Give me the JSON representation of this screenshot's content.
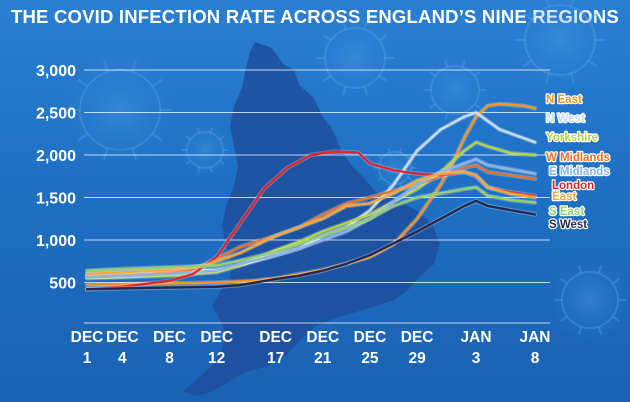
{
  "chart_data": {
    "type": "line",
    "title": "THE COVID INFECTION RATE ACROSS ENGLAND’S NINE REGIONS",
    "xlabel": "",
    "ylabel": "",
    "ylim": [
      0,
      3000
    ],
    "yticks": [
      500,
      1000,
      1500,
      2000,
      2500,
      3000
    ],
    "ytick_labels": [
      "500",
      "1,000",
      "1,500",
      "2,000",
      "2,500",
      "3,000"
    ],
    "grid": true,
    "legend_position": "right, at line ends",
    "x": [
      1,
      4,
      8,
      12,
      17,
      21,
      25,
      29,
      34,
      39
    ],
    "xtick_labels": [
      [
        "DEC",
        "1"
      ],
      [
        "DEC",
        "4"
      ],
      [
        "DEC",
        "8"
      ],
      [
        "DEC",
        "12"
      ],
      [
        "DEC",
        "17"
      ],
      [
        "DEC",
        "21"
      ],
      [
        "DEC",
        "25"
      ],
      [
        "DEC",
        "29"
      ],
      [
        "JAN",
        "3"
      ],
      [
        "JAN",
        "8"
      ]
    ],
    "series": [
      {
        "name": "N East",
        "color": "#f7941d",
        "points": [
          [
            1,
            470
          ],
          [
            4,
            480
          ],
          [
            8,
            490
          ],
          [
            12,
            500
          ],
          [
            15,
            520
          ],
          [
            17,
            550
          ],
          [
            19,
            600
          ],
          [
            21,
            650
          ],
          [
            23,
            720
          ],
          [
            25,
            800
          ],
          [
            27,
            950
          ],
          [
            29,
            1250
          ],
          [
            31,
            1650
          ],
          [
            32,
            1900
          ],
          [
            33,
            2200
          ],
          [
            34,
            2450
          ],
          [
            35,
            2580
          ],
          [
            36,
            2600
          ],
          [
            38,
            2580
          ],
          [
            39,
            2550
          ]
        ]
      },
      {
        "name": "N West",
        "color": "#c8dcf0",
        "points": [
          [
            1,
            600
          ],
          [
            4,
            620
          ],
          [
            8,
            640
          ],
          [
            12,
            650
          ],
          [
            14,
            700
          ],
          [
            17,
            820
          ],
          [
            19,
            900
          ],
          [
            21,
            1050
          ],
          [
            23,
            1150
          ],
          [
            25,
            1350
          ],
          [
            27,
            1650
          ],
          [
            29,
            2050
          ],
          [
            31,
            2300
          ],
          [
            33,
            2450
          ],
          [
            34,
            2500
          ],
          [
            35,
            2400
          ],
          [
            36,
            2300
          ],
          [
            38,
            2200
          ],
          [
            39,
            2150
          ]
        ]
      },
      {
        "name": "Yorkshire",
        "color": "#b5d33d",
        "points": [
          [
            1,
            550
          ],
          [
            4,
            560
          ],
          [
            8,
            580
          ],
          [
            12,
            620
          ],
          [
            14,
            700
          ],
          [
            17,
            880
          ],
          [
            19,
            980
          ],
          [
            21,
            1100
          ],
          [
            23,
            1200
          ],
          [
            25,
            1300
          ],
          [
            27,
            1450
          ],
          [
            29,
            1600
          ],
          [
            31,
            1800
          ],
          [
            33,
            2050
          ],
          [
            34,
            2150
          ],
          [
            35,
            2100
          ],
          [
            37,
            2020
          ],
          [
            39,
            2000
          ]
        ]
      },
      {
        "name": "W Midlands",
        "color": "#e8722a",
        "points": [
          [
            1,
            570
          ],
          [
            4,
            580
          ],
          [
            8,
            620
          ],
          [
            10,
            650
          ],
          [
            12,
            780
          ],
          [
            14,
            920
          ],
          [
            17,
            1050
          ],
          [
            19,
            1150
          ],
          [
            21,
            1300
          ],
          [
            23,
            1430
          ],
          [
            25,
            1500
          ],
          [
            27,
            1580
          ],
          [
            29,
            1650
          ],
          [
            31,
            1750
          ],
          [
            33,
            1850
          ],
          [
            34,
            1880
          ],
          [
            35,
            1800
          ],
          [
            37,
            1760
          ],
          [
            39,
            1720
          ]
        ]
      },
      {
        "name": "E Midlands",
        "color": "#8ab4e8",
        "points": [
          [
            1,
            560
          ],
          [
            4,
            575
          ],
          [
            8,
            600
          ],
          [
            12,
            640
          ],
          [
            14,
            720
          ],
          [
            17,
            820
          ],
          [
            19,
            900
          ],
          [
            21,
            1000
          ],
          [
            23,
            1100
          ],
          [
            25,
            1250
          ],
          [
            27,
            1450
          ],
          [
            29,
            1650
          ],
          [
            31,
            1800
          ],
          [
            33,
            1900
          ],
          [
            34,
            1950
          ],
          [
            35,
            1880
          ],
          [
            37,
            1830
          ],
          [
            39,
            1780
          ]
        ]
      },
      {
        "name": "London",
        "color": "#e0262b",
        "points": [
          [
            1,
            420
          ],
          [
            4,
            450
          ],
          [
            8,
            520
          ],
          [
            10,
            600
          ],
          [
            12,
            800
          ],
          [
            14,
            1200
          ],
          [
            16,
            1600
          ],
          [
            18,
            1850
          ],
          [
            20,
            2000
          ],
          [
            22,
            2040
          ],
          [
            24,
            2030
          ],
          [
            25,
            1900
          ],
          [
            27,
            1820
          ],
          [
            29,
            1780
          ],
          [
            31,
            1760
          ],
          [
            33,
            1800
          ],
          [
            34,
            1750
          ],
          [
            35,
            1620
          ],
          [
            37,
            1560
          ],
          [
            39,
            1520
          ]
        ]
      },
      {
        "name": "East",
        "color": "#f4a83a",
        "points": [
          [
            1,
            600
          ],
          [
            4,
            620
          ],
          [
            8,
            650
          ],
          [
            11,
            700
          ],
          [
            14,
            850
          ],
          [
            17,
            1050
          ],
          [
            19,
            1150
          ],
          [
            21,
            1250
          ],
          [
            23,
            1400
          ],
          [
            25,
            1430
          ],
          [
            27,
            1550
          ],
          [
            29,
            1700
          ],
          [
            31,
            1780
          ],
          [
            33,
            1800
          ],
          [
            34,
            1760
          ],
          [
            35,
            1620
          ],
          [
            37,
            1540
          ],
          [
            39,
            1500
          ]
        ]
      },
      {
        "name": "S East",
        "color": "#8fd16f",
        "points": [
          [
            1,
            640
          ],
          [
            4,
            660
          ],
          [
            8,
            680
          ],
          [
            12,
            700
          ],
          [
            14,
            760
          ],
          [
            17,
            860
          ],
          [
            19,
            950
          ],
          [
            21,
            1050
          ],
          [
            23,
            1150
          ],
          [
            25,
            1250
          ],
          [
            27,
            1400
          ],
          [
            29,
            1500
          ],
          [
            31,
            1550
          ],
          [
            33,
            1600
          ],
          [
            34,
            1620
          ],
          [
            35,
            1520
          ],
          [
            37,
            1470
          ],
          [
            39,
            1440
          ]
        ]
      },
      {
        "name": "S West",
        "color": "#26294f",
        "points": [
          [
            1,
            420
          ],
          [
            4,
            430
          ],
          [
            8,
            440
          ],
          [
            12,
            450
          ],
          [
            14,
            470
          ],
          [
            17,
            540
          ],
          [
            19,
            580
          ],
          [
            21,
            640
          ],
          [
            23,
            720
          ],
          [
            25,
            820
          ],
          [
            27,
            960
          ],
          [
            29,
            1100
          ],
          [
            31,
            1250
          ],
          [
            33,
            1400
          ],
          [
            34,
            1460
          ],
          [
            35,
            1400
          ],
          [
            37,
            1350
          ],
          [
            39,
            1300
          ]
        ]
      }
    ]
  }
}
